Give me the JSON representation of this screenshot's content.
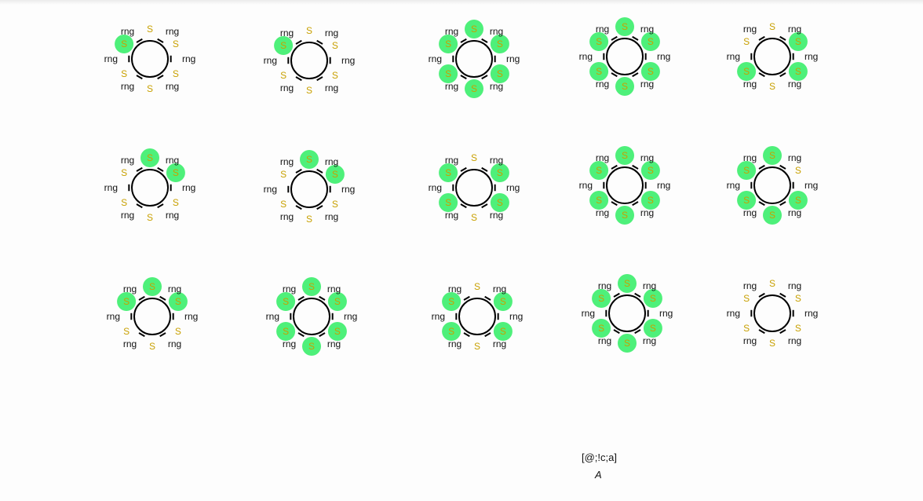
{
  "query": {
    "smarts": "[@;!c;a]",
    "legend": "A"
  },
  "atom_labels": {
    "ring": "rng",
    "sulfur": "S"
  },
  "colors": {
    "highlight": "#4ef07a",
    "sulfur": "#c8a000",
    "bond": "#000000"
  },
  "molecules": [
    {
      "highlights": [
        5
      ]
    },
    {
      "highlights": [
        5
      ]
    },
    {
      "highlights": [
        0,
        1,
        5,
        2,
        3,
        4
      ]
    },
    {
      "highlights": [
        0,
        1,
        2,
        3,
        4,
        5
      ]
    },
    {
      "highlights": [
        1,
        2,
        4
      ]
    },
    {
      "highlights": [
        0,
        1
      ]
    },
    {
      "highlights": [
        0,
        1
      ]
    },
    {
      "highlights": [
        1,
        5,
        2,
        4
      ]
    },
    {
      "highlights": [
        0,
        1,
        2,
        3,
        4,
        5
      ]
    },
    {
      "highlights": [
        0,
        5,
        2,
        3,
        4
      ]
    },
    {
      "highlights": [
        0,
        1,
        5
      ]
    },
    {
      "highlights": [
        0,
        1,
        2,
        3,
        4,
        5
      ]
    },
    {
      "highlights": [
        1,
        2,
        4,
        5
      ]
    },
    {
      "highlights": [
        0,
        1,
        2,
        3,
        4,
        5
      ]
    },
    {
      "highlights": []
    }
  ]
}
